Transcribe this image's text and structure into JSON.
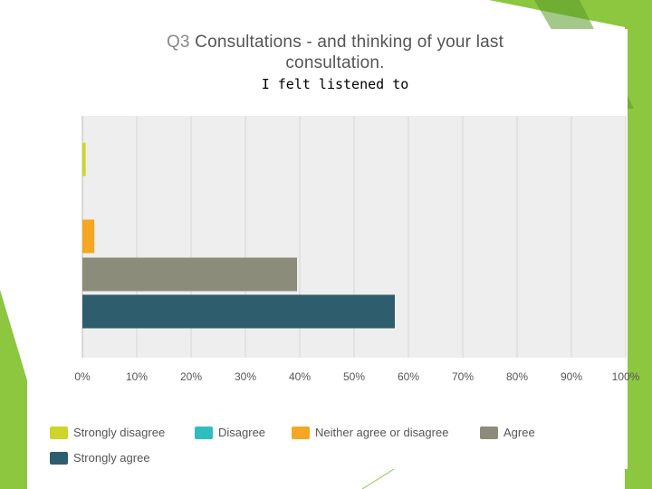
{
  "title": {
    "prefix": "Q3",
    "line1": "Consultations - and thinking of your last",
    "line2": "consultation."
  },
  "subtitle": "I felt listened to",
  "chart_data": {
    "type": "bar",
    "orientation": "horizontal",
    "title": "Q3 Consultations - and thinking of your last consultation.",
    "subtitle": "I felt listened to",
    "xlim": [
      0,
      100
    ],
    "x_ticks": [
      "0%",
      "10%",
      "20%",
      "30%",
      "40%",
      "50%",
      "60%",
      "70%",
      "80%",
      "90%",
      "100%"
    ],
    "grid": true,
    "legend_position": "bottom",
    "series": [
      {
        "name": "Strongly disagree",
        "value": 0.6,
        "color": "#ccd62a"
      },
      {
        "name": "Disagree",
        "value": 0,
        "color": "#2fbdbf"
      },
      {
        "name": "Neither agree or disagree",
        "value": 2.2,
        "color": "#f5a623"
      },
      {
        "name": "Agree",
        "value": 39.5,
        "color": "#8c8c7a"
      },
      {
        "name": "Strongly agree",
        "value": 57.5,
        "color": "#2e5e6e"
      }
    ]
  },
  "theme": {
    "accent_green": "#8dc63f",
    "dark_green": "#5a9a2a",
    "plot_background": "#eeeeee",
    "grid_color": "#d6d6d6"
  }
}
